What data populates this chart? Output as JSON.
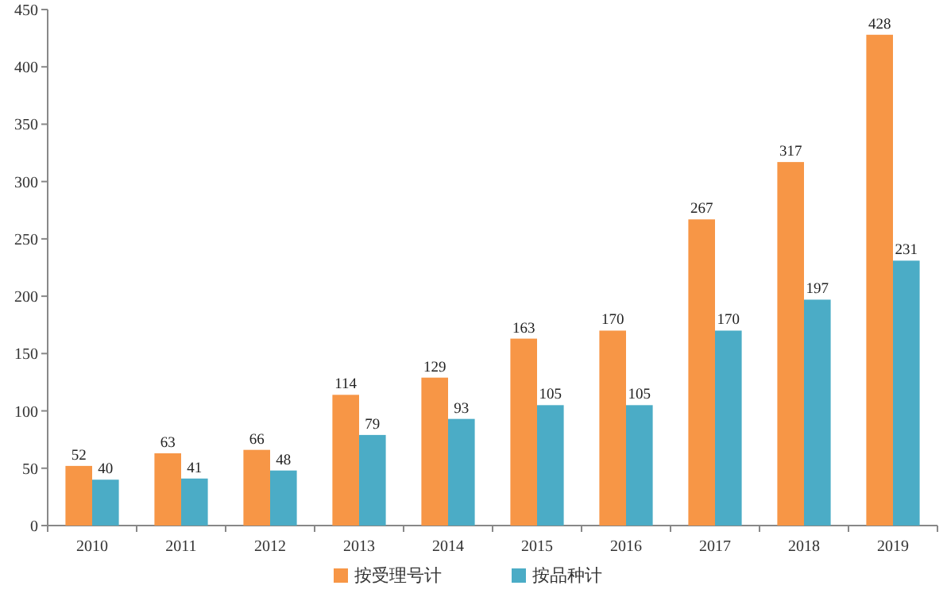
{
  "chart_data": {
    "type": "bar",
    "categories": [
      "2010",
      "2011",
      "2012",
      "2013",
      "2014",
      "2015",
      "2016",
      "2017",
      "2018",
      "2019"
    ],
    "series": [
      {
        "name": "按受理号计",
        "color": "#f79646",
        "values": [
          52,
          63,
          66,
          114,
          129,
          163,
          170,
          267,
          317,
          428
        ]
      },
      {
        "name": "按品种计",
        "color": "#4bacc6",
        "values": [
          40,
          41,
          48,
          79,
          93,
          105,
          105,
          170,
          197,
          231
        ]
      }
    ],
    "ylim": [
      0,
      450
    ],
    "yticks": [
      0,
      50,
      100,
      150,
      200,
      250,
      300,
      350,
      400,
      450
    ],
    "data_labels": true,
    "legend": "bottom",
    "grid": false
  }
}
